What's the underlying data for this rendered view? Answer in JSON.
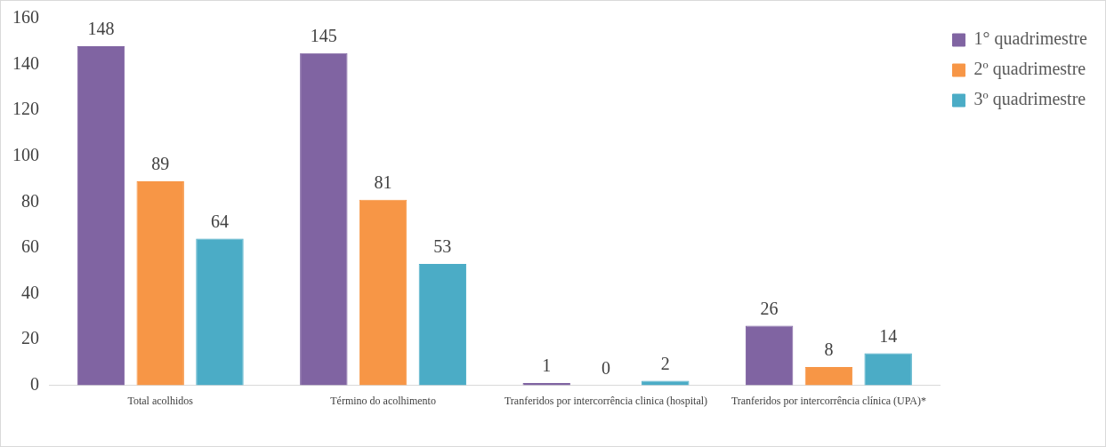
{
  "chart_data": {
    "type": "bar",
    "categories": [
      "Total acolhidos",
      "Término do acolhimento",
      "Tranferidos por intercorrência clinica (hospital)",
      "Tranferidos por intercorrência clínica (UPA)*"
    ],
    "series": [
      {
        "name": "1° quadrimestre",
        "color": "#8064a2",
        "values": [
          148,
          145,
          1,
          26
        ]
      },
      {
        "name": "2º quadrimestre",
        "color": "#f79646",
        "values": [
          89,
          81,
          0,
          8
        ]
      },
      {
        "name": "3º quadrimestre",
        "color": "#4bacc6",
        "values": [
          64,
          53,
          2,
          14
        ]
      }
    ],
    "ylim": [
      0,
      160
    ],
    "yticks": [
      0,
      20,
      40,
      60,
      80,
      100,
      120,
      140,
      160
    ],
    "grid": false,
    "legend": "top right",
    "data_labels": true
  }
}
